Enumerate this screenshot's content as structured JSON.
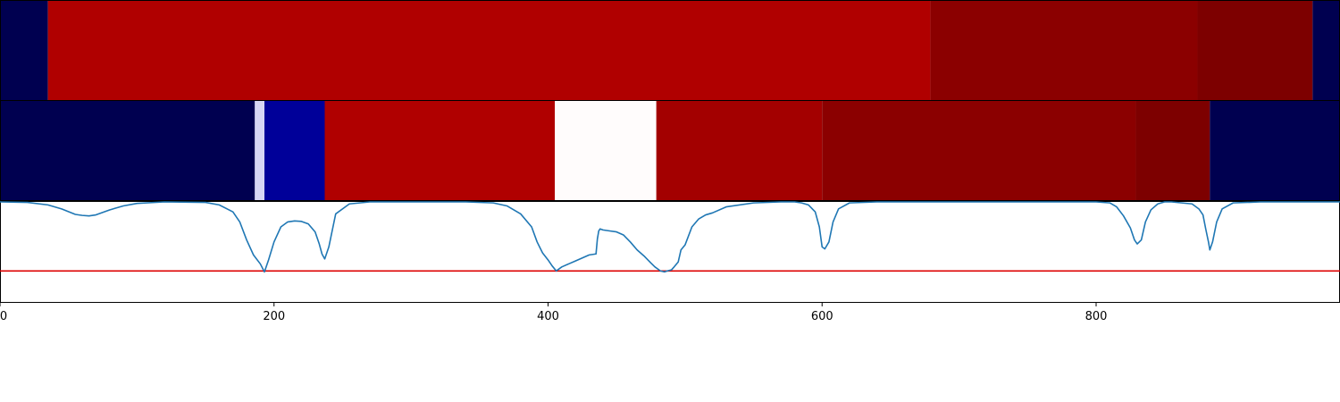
{
  "chart_data": {
    "type": "line",
    "title": "",
    "xlabel": "",
    "ylabel": "",
    "xlim": [
      0,
      978
    ],
    "ylim": [
      0,
      1
    ],
    "grid": false,
    "x_ticks": [
      0,
      200,
      400,
      600,
      800
    ],
    "x_tick_labels": [
      "0",
      "200",
      "400",
      "600",
      "800"
    ],
    "threshold": {
      "value": 0.31,
      "color": "#dd0000"
    },
    "line_color": "#1f77b4",
    "segment_bands": [
      {
        "name": "",
        "segments": [
          {
            "start": 0,
            "end": 35,
            "color": "#000050"
          },
          {
            "start": 35,
            "end": 679,
            "color": "#b00000"
          },
          {
            "start": 679,
            "end": 874,
            "color": "#8b0000"
          },
          {
            "start": 874,
            "end": 958,
            "color": "#7d0000"
          },
          {
            "start": 958,
            "end": 978,
            "color": "#000050"
          }
        ]
      },
      {
        "name": "",
        "segments": [
          {
            "start": 0,
            "end": 186,
            "color": "#000050"
          },
          {
            "start": 186,
            "end": 193,
            "color": "#d6d6f5"
          },
          {
            "start": 193,
            "end": 237,
            "color": "#000099"
          },
          {
            "start": 237,
            "end": 405,
            "color": "#b00000"
          },
          {
            "start": 405,
            "end": 479,
            "color": "#fffcfc"
          },
          {
            "start": 479,
            "end": 600,
            "color": "#a30000"
          },
          {
            "start": 600,
            "end": 829,
            "color": "#8b0000"
          },
          {
            "start": 829,
            "end": 883,
            "color": "#7d0000"
          },
          {
            "start": 883,
            "end": 978,
            "color": "#000050"
          }
        ]
      }
    ],
    "series": [
      {
        "x": [
          0,
          20,
          35,
          45,
          55,
          60,
          65,
          70,
          80,
          90,
          100,
          120,
          150,
          160,
          170,
          175,
          180,
          185,
          190,
          193,
          196,
          200,
          205,
          210,
          215,
          220,
          225,
          230,
          233,
          235,
          237,
          240,
          245,
          255,
          270,
          300,
          340,
          360,
          370,
          380,
          388,
          392,
          396,
          400,
          403,
          406,
          410,
          415,
          420,
          425,
          430,
          435,
          436,
          437,
          438,
          440,
          445,
          450,
          455,
          460,
          465,
          470,
          475,
          478,
          480,
          482,
          485,
          487,
          490,
          492,
          495,
          497,
          500,
          505,
          510,
          515,
          520,
          530,
          550,
          570,
          580,
          585,
          590,
          595,
          598,
          600,
          602,
          605,
          608,
          612,
          620,
          640,
          660,
          680,
          700,
          750,
          800,
          810,
          815,
          820,
          825,
          828,
          830,
          833,
          836,
          840,
          845,
          850,
          855,
          870,
          875,
          878,
          880,
          882,
          883,
          885,
          888,
          892,
          900,
          920,
          940,
          960,
          978
        ],
        "values": [
          1.0,
          0.995,
          0.97,
          0.93,
          0.875,
          0.865,
          0.86,
          0.87,
          0.92,
          0.96,
          0.985,
          1.0,
          0.995,
          0.97,
          0.9,
          0.8,
          0.62,
          0.47,
          0.38,
          0.3,
          0.42,
          0.6,
          0.75,
          0.8,
          0.81,
          0.805,
          0.78,
          0.7,
          0.58,
          0.48,
          0.43,
          0.55,
          0.88,
          0.98,
          1.0,
          1.0,
          1.0,
          0.99,
          0.96,
          0.88,
          0.75,
          0.6,
          0.49,
          0.42,
          0.36,
          0.31,
          0.35,
          0.38,
          0.41,
          0.44,
          0.47,
          0.48,
          0.63,
          0.71,
          0.73,
          0.72,
          0.71,
          0.7,
          0.67,
          0.6,
          0.52,
          0.46,
          0.39,
          0.35,
          0.33,
          0.31,
          0.3,
          0.31,
          0.32,
          0.35,
          0.4,
          0.52,
          0.57,
          0.75,
          0.83,
          0.87,
          0.89,
          0.95,
          0.99,
          1.0,
          1.0,
          0.99,
          0.97,
          0.9,
          0.75,
          0.55,
          0.53,
          0.6,
          0.8,
          0.93,
          0.99,
          1.0,
          1.0,
          1.0,
          1.0,
          1.0,
          1.0,
          0.99,
          0.95,
          0.86,
          0.74,
          0.62,
          0.58,
          0.62,
          0.8,
          0.92,
          0.98,
          1.0,
          1.0,
          0.98,
          0.93,
          0.87,
          0.73,
          0.6,
          0.52,
          0.6,
          0.8,
          0.93,
          0.99,
          1.0,
          1.0,
          1.0,
          1.0
        ]
      }
    ]
  }
}
